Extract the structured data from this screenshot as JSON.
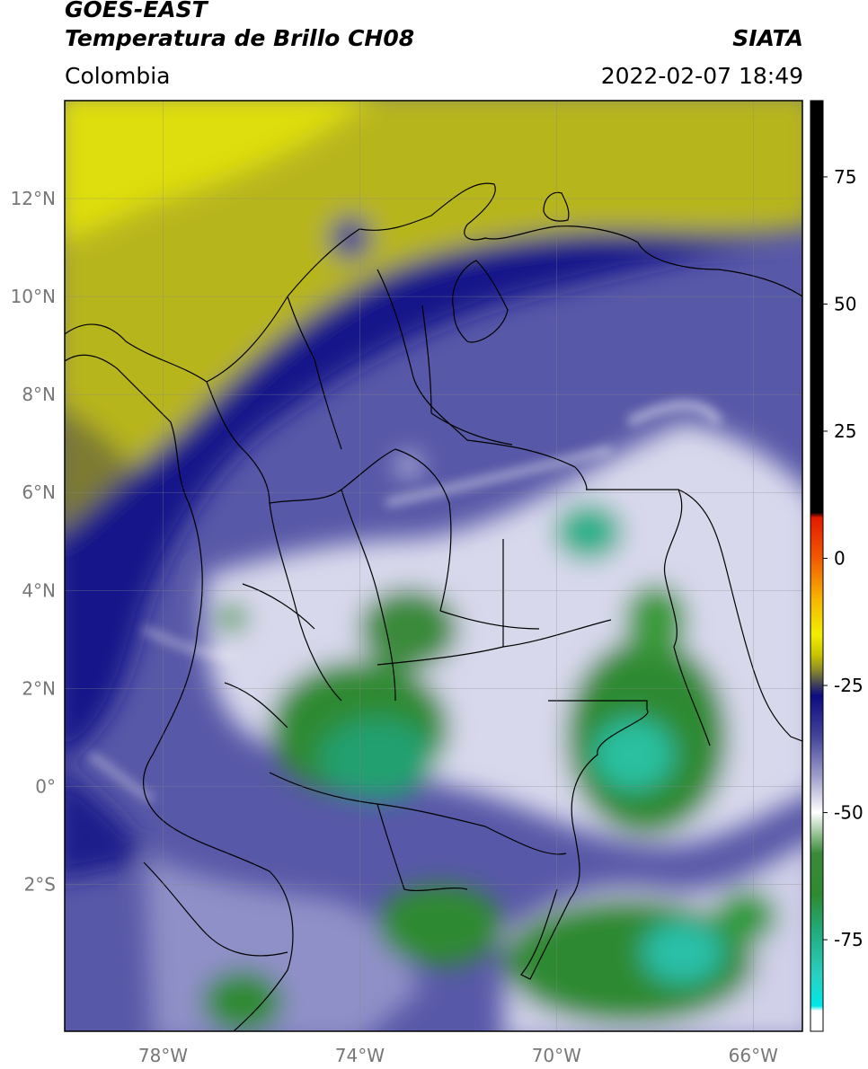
{
  "header": {
    "satellite": "GOES-EAST",
    "product": "Temperatura de Brillo CH08",
    "organization": "SIATA",
    "region": "Colombia",
    "datetime": "2022-02-07 18:49"
  },
  "map": {
    "lon_range": [
      -80.0,
      -65.0
    ],
    "lat_range": [
      -5.0,
      14.0
    ],
    "lon_ticks": [
      {
        "value": -78,
        "label": "78°W"
      },
      {
        "value": -74,
        "label": "74°W"
      },
      {
        "value": -70,
        "label": "70°W"
      },
      {
        "value": -66,
        "label": "66°W"
      }
    ],
    "lat_ticks": [
      {
        "value": 12,
        "label": "12°N"
      },
      {
        "value": 10,
        "label": "10°N"
      },
      {
        "value": 8,
        "label": "8°N"
      },
      {
        "value": 6,
        "label": "6°N"
      },
      {
        "value": 4,
        "label": "4°N"
      },
      {
        "value": 2,
        "label": "2°N"
      },
      {
        "value": 0,
        "label": "0°"
      },
      {
        "value": -2,
        "label": "2°S"
      }
    ],
    "grid": true
  },
  "colorbar": {
    "range": [
      -93,
      90
    ],
    "ticks": [
      {
        "value": 75,
        "label": "75"
      },
      {
        "value": 50,
        "label": "50"
      },
      {
        "value": 25,
        "label": "25"
      },
      {
        "value": 0,
        "label": "0"
      },
      {
        "value": -25,
        "label": "-25"
      },
      {
        "value": -50,
        "label": "-50"
      },
      {
        "value": -75,
        "label": "-75"
      }
    ],
    "stops": [
      {
        "value": 90,
        "color": "#000000"
      },
      {
        "value": 9,
        "color": "#000000"
      },
      {
        "value": 8,
        "color": "#e31a00"
      },
      {
        "value": 0,
        "color": "#f15a00"
      },
      {
        "value": -8,
        "color": "#f7b500"
      },
      {
        "value": -15,
        "color": "#f2ee00"
      },
      {
        "value": -19,
        "color": "#c9c400"
      },
      {
        "value": -22,
        "color": "#8a8a2a"
      },
      {
        "value": -25,
        "color": "#3c3c5c"
      },
      {
        "value": -27,
        "color": "#0c0c82"
      },
      {
        "value": -35,
        "color": "#44449a"
      },
      {
        "value": -43,
        "color": "#a0a0cc"
      },
      {
        "value": -50,
        "color": "#ffffff"
      },
      {
        "value": -58,
        "color": "#3a8a3a"
      },
      {
        "value": -66,
        "color": "#2e8a30"
      },
      {
        "value": -73,
        "color": "#22aa7a"
      },
      {
        "value": -82,
        "color": "#2ad0c0"
      },
      {
        "value": -88,
        "color": "#00e8e8"
      },
      {
        "value": -89,
        "color": "#ffffff"
      },
      {
        "value": -93,
        "color": "#ffffff"
      }
    ]
  }
}
